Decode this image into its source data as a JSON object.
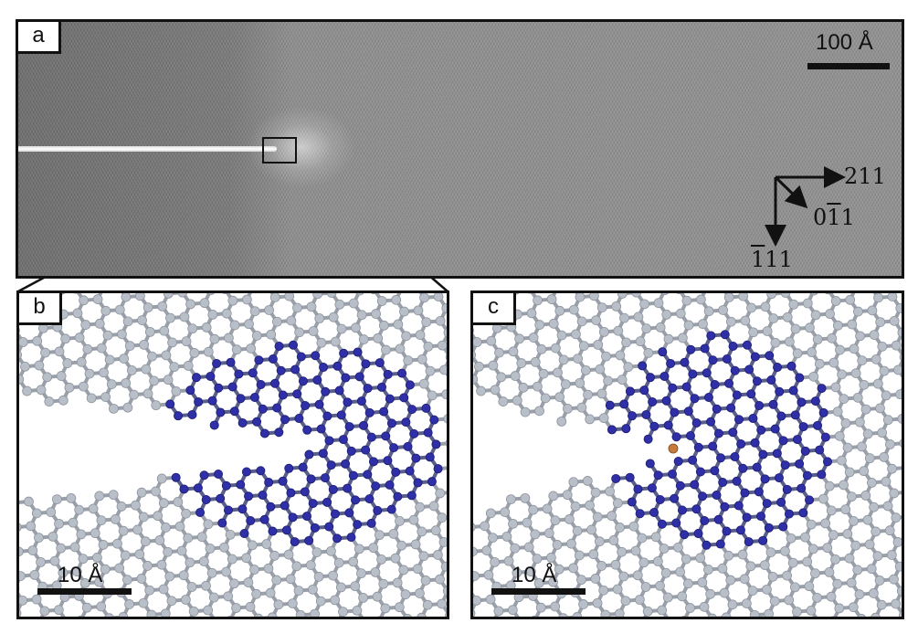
{
  "figure": {
    "panels": [
      {
        "id": "a",
        "label": "a",
        "scalebar": "100 Å"
      },
      {
        "id": "b",
        "label": "b",
        "scalebar": "10 Å"
      },
      {
        "id": "c",
        "label": "c",
        "scalebar": "10 Å"
      }
    ],
    "directions": {
      "x": {
        "digits": [
          "2",
          "1",
          "1"
        ],
        "bar": [
          false,
          false,
          false
        ]
      },
      "diag": {
        "digits": [
          "0",
          "1",
          "1"
        ],
        "bar": [
          false,
          true,
          false
        ]
      },
      "y": {
        "digits": [
          "1",
          "1",
          "1"
        ],
        "bar": [
          true,
          false,
          false
        ]
      }
    },
    "colors": {
      "lattice_atom": "#b9bfc9",
      "lattice_bond": "#9aa0aa",
      "amorphous_atom": "#2f2fa8",
      "amorphous_bond": "#5a5f8a",
      "defect_atom": "#c87a3a"
    }
  }
}
